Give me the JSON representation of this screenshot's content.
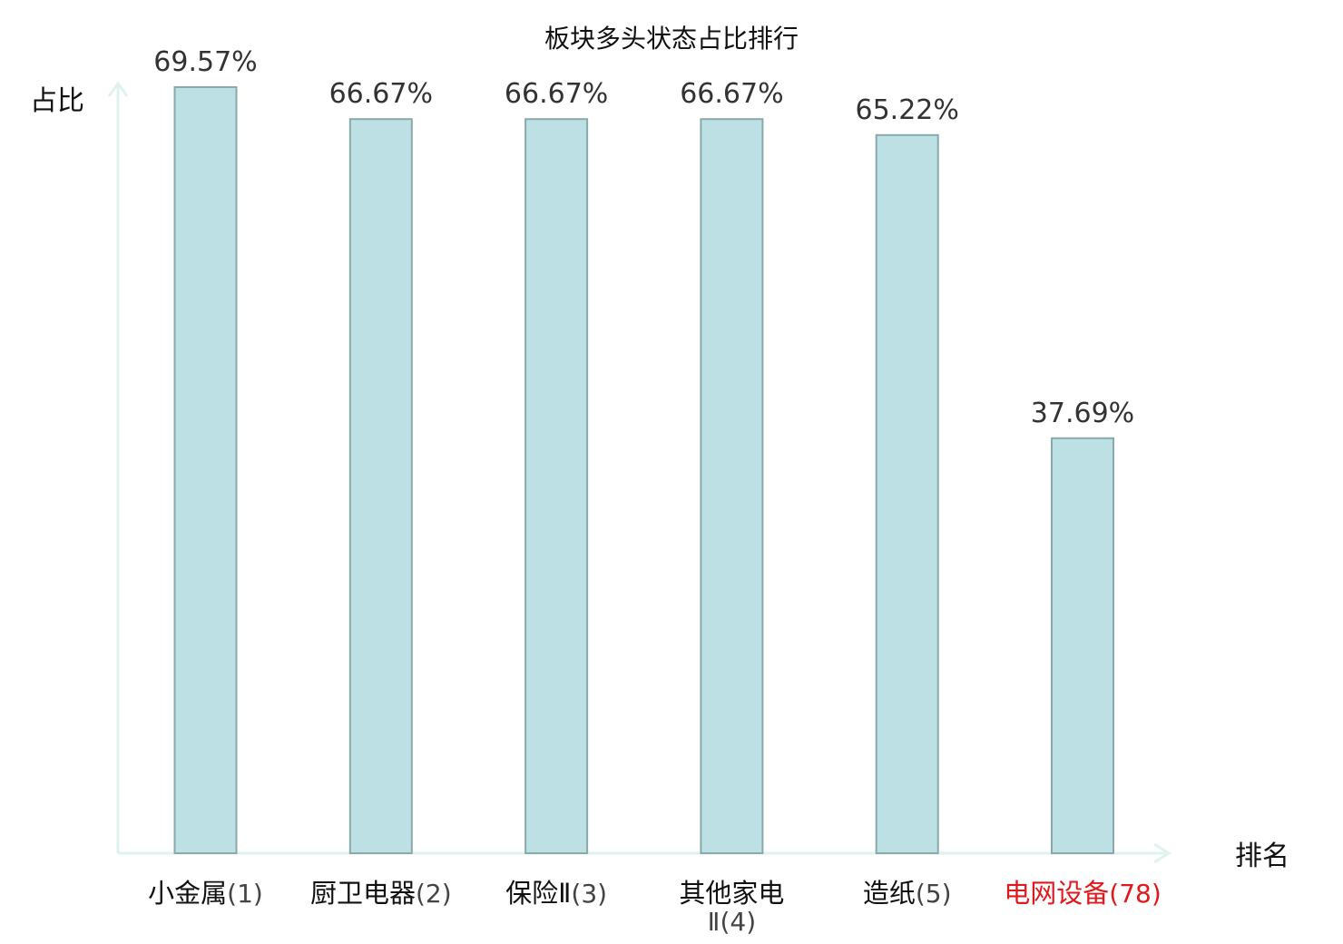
{
  "chart_data": {
    "type": "bar",
    "title": "板块多头状态占比排行",
    "ylabel": "占比",
    "xlabel": "排名",
    "ylim": [
      0,
      69.57
    ],
    "grid": false,
    "categories": [
      {
        "name": "小金属",
        "rank": "(1)",
        "highlight": false
      },
      {
        "name": "厨卫电器",
        "rank": "(2)",
        "highlight": false
      },
      {
        "name": "保险Ⅱ",
        "rank": "(3)",
        "highlight": false
      },
      {
        "name": "其他家电",
        "name2": "Ⅱ(4)",
        "rank": "",
        "highlight": false
      },
      {
        "name": "造纸",
        "rank": "(5)",
        "highlight": false
      },
      {
        "name": "电网设备",
        "rank": "(78)",
        "highlight": true
      }
    ],
    "values": [
      69.57,
      66.67,
      66.67,
      66.67,
      65.22,
      37.69
    ],
    "value_labels": [
      "69.57%",
      "66.67%",
      "66.67%",
      "66.67%",
      "65.22%",
      "37.69%"
    ]
  },
  "colors": {
    "bar_fill": "#bce0e3",
    "bar_stroke": "#8aa9ab",
    "axis": "#e0f2ef",
    "highlight": "#e0191e",
    "text": "#111111",
    "rank_text": "#444444"
  }
}
